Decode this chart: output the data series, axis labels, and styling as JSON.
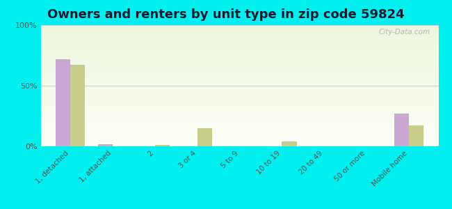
{
  "title": "Owners and renters by unit type in zip code 59824",
  "categories": [
    "1, detached",
    "1, attached",
    "2",
    "3 or 4",
    "5 to 9",
    "10 to 19",
    "20 to 49",
    "50 or more",
    "Mobile home"
  ],
  "owner_values": [
    72,
    2,
    0,
    0,
    0,
    0,
    0,
    0,
    27
  ],
  "renter_values": [
    67,
    0,
    1,
    15,
    0,
    4,
    0,
    0,
    17
  ],
  "owner_color": "#c9a8d4",
  "renter_color": "#c8cc8a",
  "background_color": "#00efef",
  "ylim": [
    0,
    100
  ],
  "yticks": [
    0,
    50,
    100
  ],
  "ytick_labels": [
    "0%",
    "50%",
    "100%"
  ],
  "bar_width": 0.35,
  "title_fontsize": 13,
  "title_color": "#1a1a2e",
  "watermark": "City-Data.com",
  "tick_color": "#555555",
  "grid_color": "#cccccc"
}
